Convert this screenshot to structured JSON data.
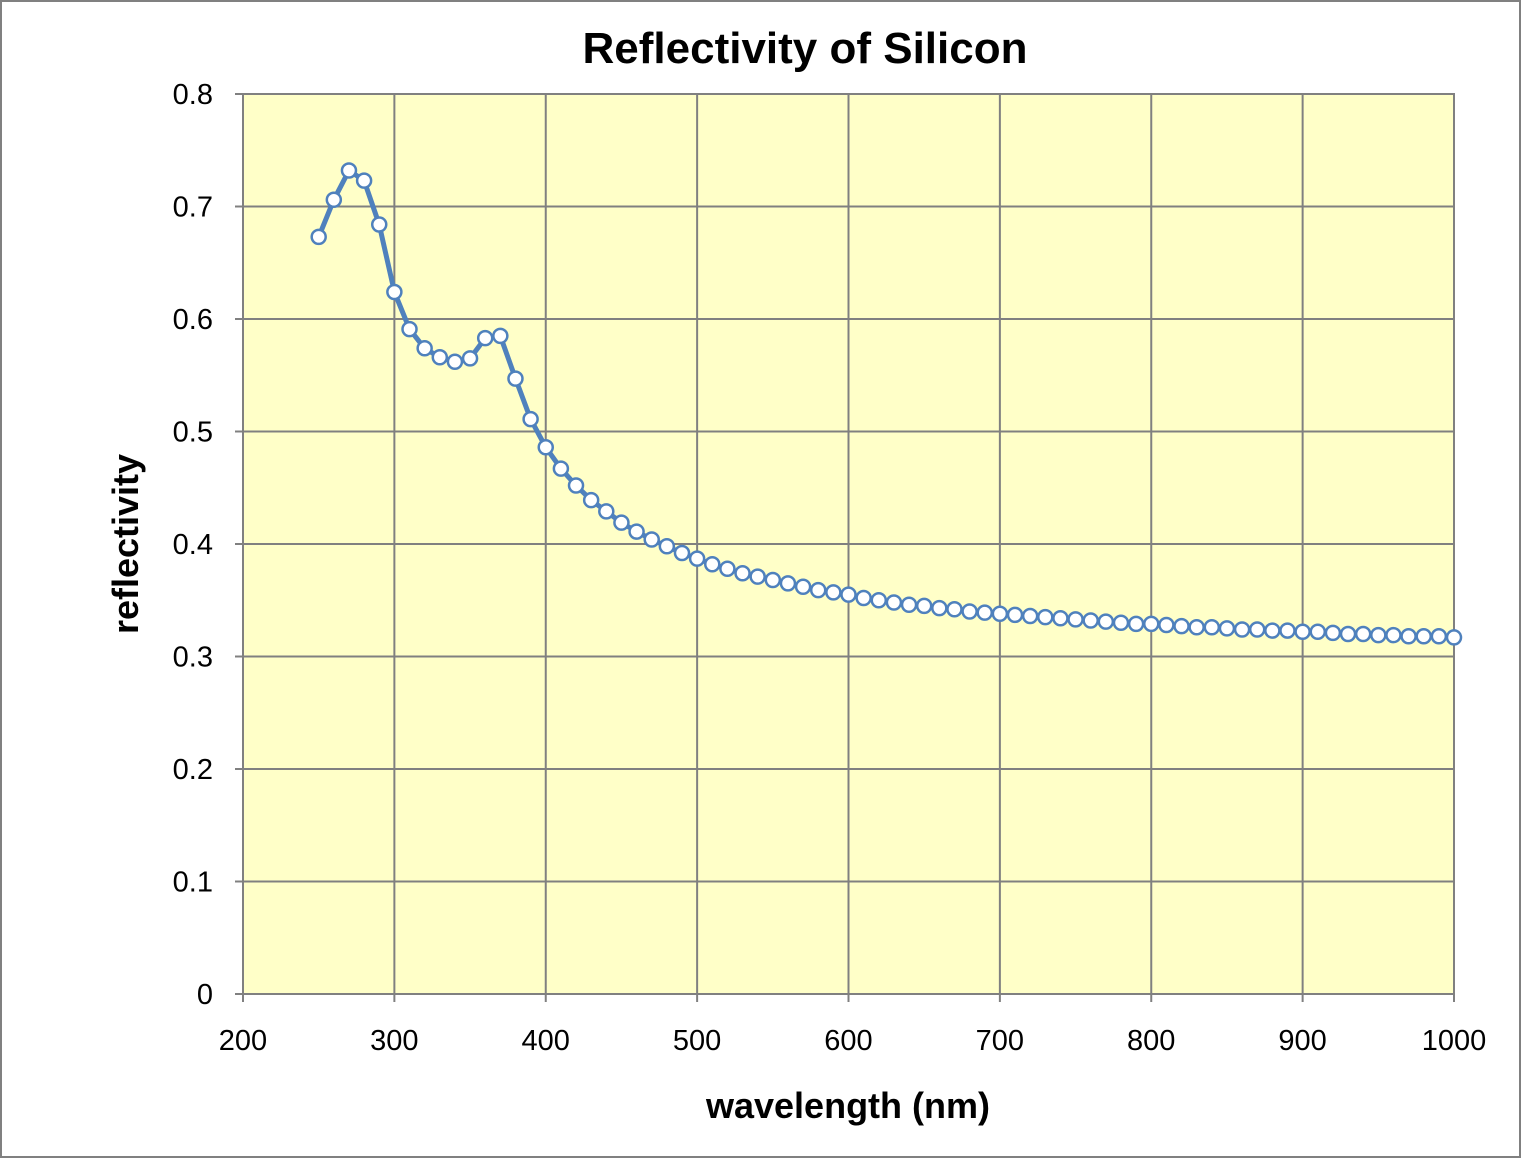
{
  "chart_data": {
    "type": "line",
    "title": "Reflectivity of Silicon",
    "xlabel": "wavelength (nm)",
    "ylabel": "reflectivity",
    "xlim": [
      200,
      1000
    ],
    "ylim": [
      0,
      0.8
    ],
    "x_ticks": [
      "200",
      "300",
      "400",
      "500",
      "600",
      "700",
      "800",
      "900",
      "1000"
    ],
    "y_ticks": [
      "0",
      "0.1",
      "0.2",
      "0.3",
      "0.4",
      "0.5",
      "0.6",
      "0.7",
      "0.8"
    ],
    "x_tick_values": [
      200,
      300,
      400,
      500,
      600,
      700,
      800,
      900,
      1000
    ],
    "y_tick_values": [
      0,
      0.1,
      0.2,
      0.3,
      0.4,
      0.5,
      0.6,
      0.7,
      0.8
    ],
    "grid": true,
    "legend": "none",
    "colors": {
      "plot_background": "#ffffc8",
      "line": "#4f81bd",
      "marker_fill": "#ffffff",
      "grid": "#808080"
    },
    "series": [
      {
        "x": [
          250,
          260,
          270,
          280,
          290,
          300,
          310,
          320,
          330,
          340,
          350,
          360,
          370,
          380,
          390,
          400,
          410,
          420,
          430,
          440,
          450,
          460,
          470,
          480,
          490,
          500,
          510,
          520,
          530,
          540,
          550,
          560,
          570,
          580,
          590,
          600,
          610,
          620,
          630,
          640,
          650,
          660,
          670,
          680,
          690,
          700,
          710,
          720,
          730,
          740,
          750,
          760,
          770,
          780,
          790,
          800,
          810,
          820,
          830,
          840,
          850,
          860,
          870,
          880,
          890,
          900,
          910,
          920,
          930,
          940,
          950,
          960,
          970,
          980,
          990,
          1000
        ],
        "y": [
          0.673,
          0.706,
          0.732,
          0.723,
          0.684,
          0.624,
          0.591,
          0.574,
          0.566,
          0.562,
          0.565,
          0.583,
          0.585,
          0.547,
          0.511,
          0.486,
          0.467,
          0.452,
          0.439,
          0.429,
          0.419,
          0.411,
          0.404,
          0.398,
          0.392,
          0.387,
          0.382,
          0.378,
          0.374,
          0.371,
          0.368,
          0.365,
          0.362,
          0.359,
          0.357,
          0.355,
          0.352,
          0.35,
          0.348,
          0.346,
          0.345,
          0.343,
          0.342,
          0.34,
          0.339,
          0.338,
          0.337,
          0.336,
          0.335,
          0.334,
          0.333,
          0.332,
          0.331,
          0.33,
          0.329,
          0.329,
          0.328,
          0.327,
          0.326,
          0.326,
          0.325,
          0.324,
          0.324,
          0.323,
          0.323,
          0.322,
          0.322,
          0.321,
          0.32,
          0.32,
          0.319,
          0.319,
          0.318,
          0.318,
          0.318,
          0.317
        ]
      }
    ]
  }
}
